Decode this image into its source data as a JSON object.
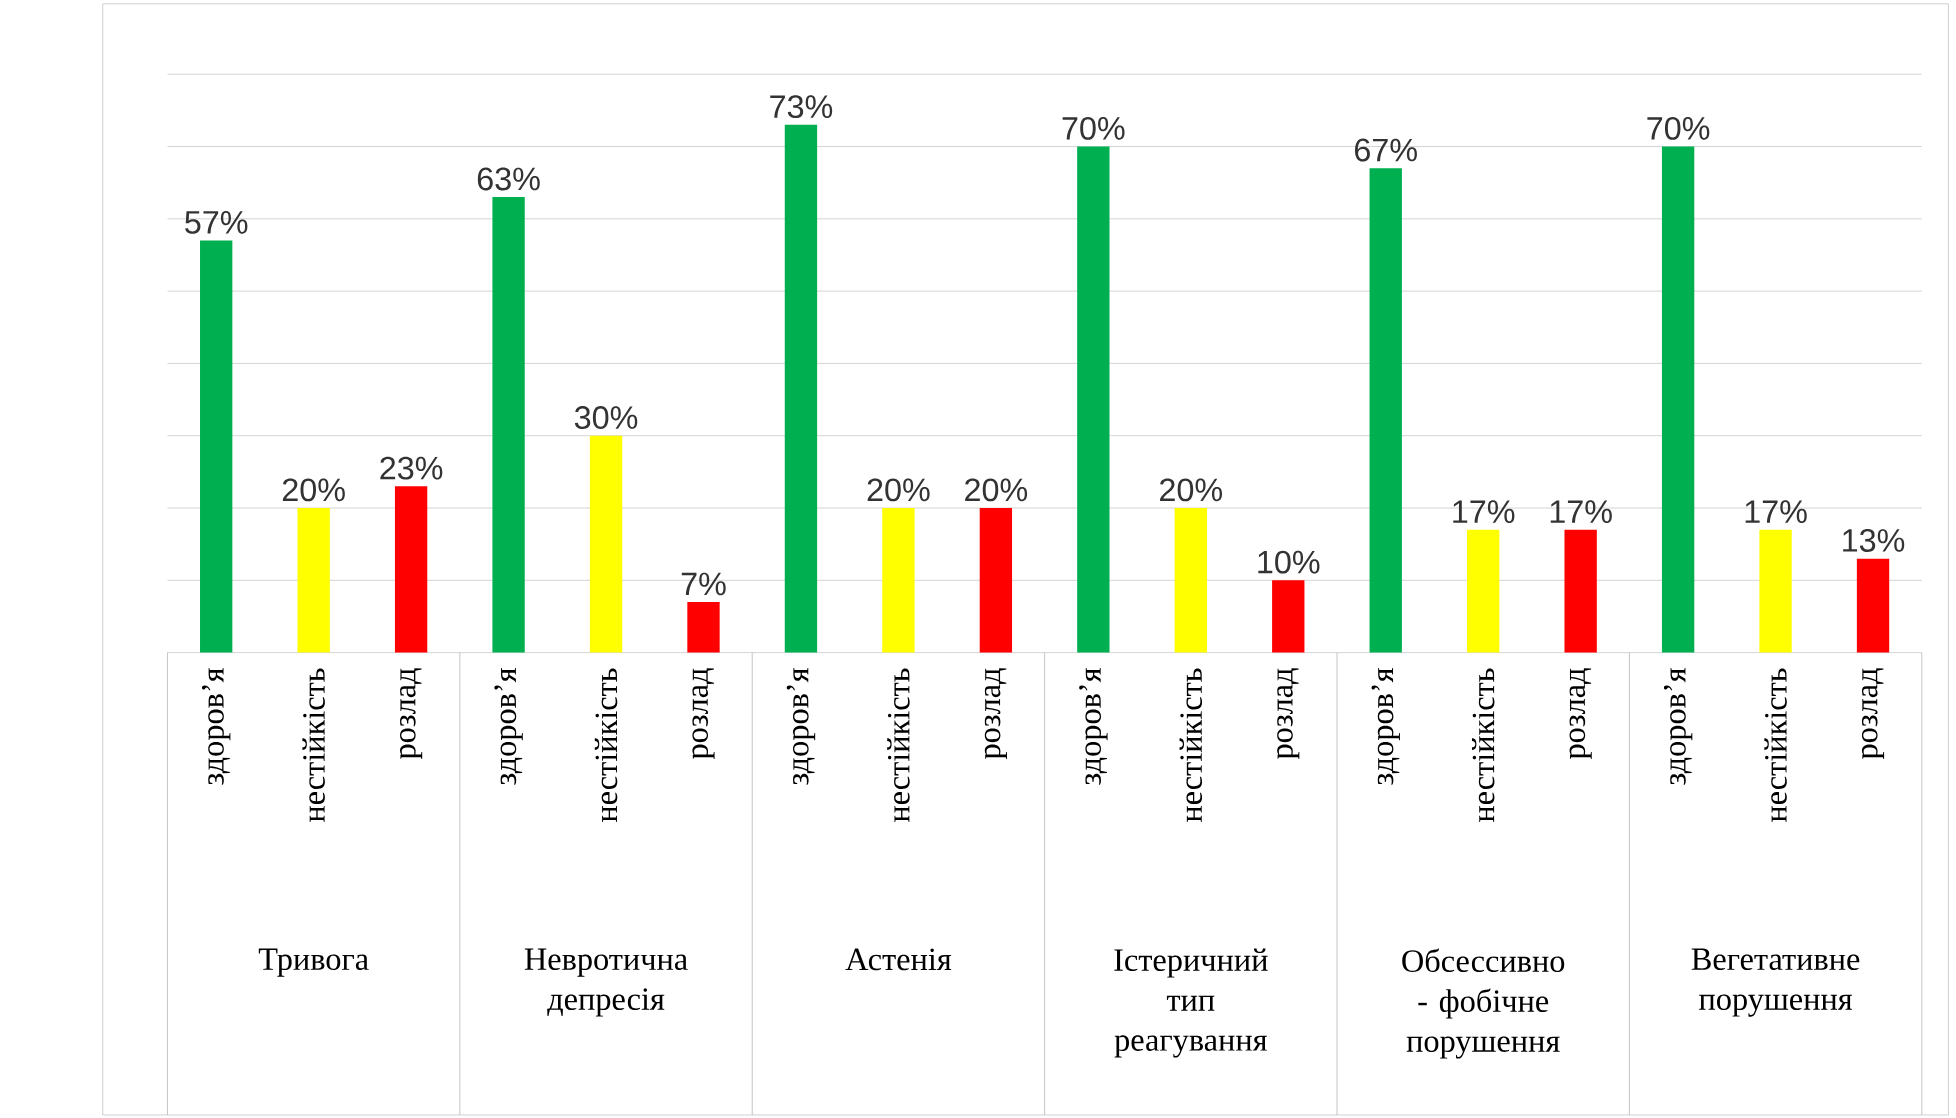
{
  "chart_data": {
    "type": "bar",
    "categories": [
      "здоров’я",
      "нестійкість",
      "розлад",
      "здоров’я",
      "нестійкість",
      "розлад",
      "здоров’я",
      "нестійкість",
      "розлад",
      "здоров’я",
      "нестійкість",
      "розлад",
      "здоров’я",
      "нестійкість",
      "розлад",
      "здоров’я",
      "нестійкість",
      "розлад"
    ],
    "values": [
      57,
      20,
      23,
      63,
      30,
      7,
      73,
      20,
      20,
      70,
      20,
      10,
      67,
      17,
      17,
      70,
      17,
      13
    ],
    "value_labels": [
      "57%",
      "20%",
      "23%",
      "63%",
      "30%",
      "7%",
      "73%",
      "20%",
      "20%",
      "70%",
      "20%",
      "10%",
      "67%",
      "17%",
      "17%",
      "70%",
      "17%",
      "13%"
    ],
    "colors": [
      "#00b050",
      "#ffff00",
      "#ff0000",
      "#00b050",
      "#ffff00",
      "#ff0000",
      "#00b050",
      "#ffff00",
      "#ff0000",
      "#00b050",
      "#ffff00",
      "#ff0000",
      "#00b050",
      "#ffff00",
      "#ff0000",
      "#00b050",
      "#ffff00",
      "#ff0000"
    ],
    "annotations": [
      "Тривога",
      "Невротична депресія",
      "Астенія",
      "Істеричний тип реагування",
      "Обсессивно - фобічне порушення",
      "Вегетативне порушення"
    ],
    "ylim": [
      0,
      80
    ],
    "yticks": [
      {
        "value": 0,
        "label": null
      },
      {
        "value": 10,
        "label": null
      },
      {
        "value": 20,
        "label": null
      },
      {
        "value": 30,
        "label": null
      },
      {
        "value": 40,
        "label": null
      },
      {
        "value": 50,
        "label": null
      },
      {
        "value": 60,
        "label": null
      },
      {
        "value": 70,
        "label": null
      },
      {
        "value": 80,
        "label": null
      }
    ],
    "grid": "y",
    "tick_labels": "x"
  }
}
